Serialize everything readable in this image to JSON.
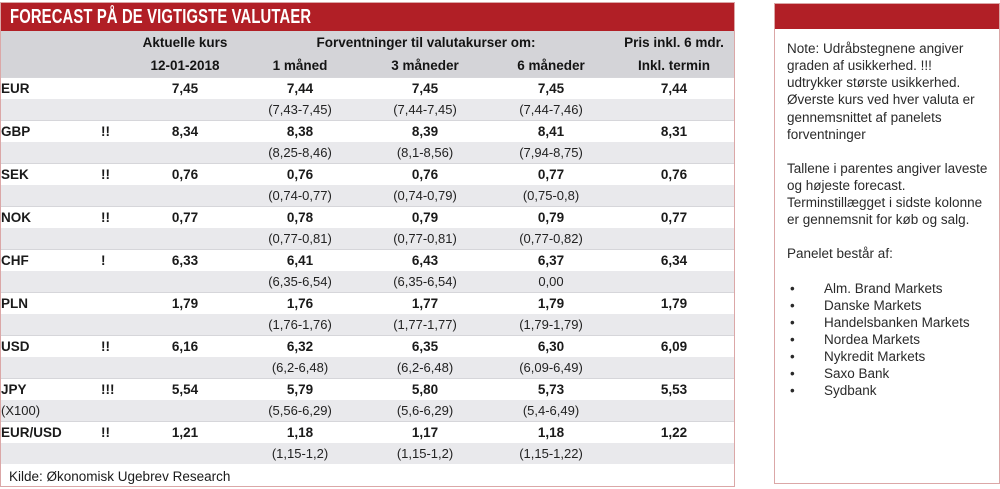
{
  "colors": {
    "accent_red": "#b11f26",
    "header_gray": "#d4d4d8",
    "stripe_gray": "#e9e9ec",
    "border_pink": "#dba7a7"
  },
  "left_panel": {
    "title": "FORECAST PÅ DE VIGTIGSTE VALUTAER",
    "source": "Kilde: Økonomisk Ugebrev Research"
  },
  "chart_data": {
    "type": "table",
    "title": "FORECAST PÅ DE VIGTIGSTE VALUTAER",
    "header": {
      "current_label": "Aktuelle kurs",
      "current_date": "12-01-2018",
      "forecast_label": "Forventninger til valutakurser om:",
      "col_1m": "1 måned",
      "col_3m": "3 måneder",
      "col_6m": "6 måneder",
      "termin_label_line1": "Pris inkl. 6 mdr.",
      "termin_label_line2": "Inkl. termin"
    },
    "rows": [
      {
        "code": "EUR",
        "sub": "",
        "marks": "",
        "current": "7,45",
        "m1": "7,44",
        "m1_range": "(7,43-7,45)",
        "m3": "7,45",
        "m3_range": "(7,44-7,45)",
        "m6": "7,45",
        "m6_range": "(7,44-7,46)",
        "termin": "7,44"
      },
      {
        "code": "GBP",
        "sub": "",
        "marks": "!!",
        "current": "8,34",
        "m1": "8,38",
        "m1_range": "(8,25-8,46)",
        "m3": "8,39",
        "m3_range": "(8,1-8,56)",
        "m6": "8,41",
        "m6_range": "(7,94-8,75)",
        "termin": "8,31"
      },
      {
        "code": "SEK",
        "sub": "",
        "marks": "!!",
        "current": "0,76",
        "m1": "0,76",
        "m1_range": "(0,74-0,77)",
        "m3": "0,76",
        "m3_range": "(0,74-0,79)",
        "m6": "0,77",
        "m6_range": "(0,75-0,8)",
        "termin": "0,76"
      },
      {
        "code": "NOK",
        "sub": "",
        "marks": "!!",
        "current": "0,77",
        "m1": "0,78",
        "m1_range": "(0,77-0,81)",
        "m3": "0,79",
        "m3_range": "(0,77-0,81)",
        "m6": "0,79",
        "m6_range": "(0,77-0,82)",
        "termin": "0,77"
      },
      {
        "code": "CHF",
        "sub": "",
        "marks": "!",
        "current": "6,33",
        "m1": "6,41",
        "m1_range": "(6,35-6,54)",
        "m3": "6,43",
        "m3_range": "(6,35-6,54)",
        "m6": "6,37",
        "m6_range": "0,00",
        "termin": "6,34"
      },
      {
        "code": "PLN",
        "sub": "",
        "marks": "",
        "current": "1,79",
        "m1": "1,76",
        "m1_range": "(1,76-1,76)",
        "m3": "1,77",
        "m3_range": "(1,77-1,77)",
        "m6": "1,79",
        "m6_range": "(1,79-1,79)",
        "termin": "1,79"
      },
      {
        "code": "USD",
        "sub": "",
        "marks": "!!",
        "current": "6,16",
        "m1": "6,32",
        "m1_range": "(6,2-6,48)",
        "m3": "6,35",
        "m3_range": "(6,2-6,48)",
        "m6": "6,30",
        "m6_range": "(6,09-6,49)",
        "termin": "6,09"
      },
      {
        "code": "JPY",
        "sub": "(X100)",
        "marks": "!!!",
        "current": "5,54",
        "m1": "5,79",
        "m1_range": "(5,56-6,29)",
        "m3": "5,80",
        "m3_range": "(5,6-6,29)",
        "m6": "5,73",
        "m6_range": "(5,4-6,49)",
        "termin": "5,53"
      },
      {
        "code": "EUR/USD",
        "sub": "",
        "marks": "!!",
        "current": "1,21",
        "m1": "1,18",
        "m1_range": "(1,15-1,2)",
        "m3": "1,17",
        "m3_range": "(1,15-1,2)",
        "m6": "1,18",
        "m6_range": "(1,15-1,22)",
        "termin": "1,22"
      }
    ],
    "source": "Kilde: Økonomisk Ugebrev Research"
  },
  "right_panel": {
    "note_paragraphs": [
      "Note: Udråbstegnene angiver graden af usikkerhed. !!! udtrykker største usikkerhed. Øverste kurs ved hver valuta er gennemsnittet af panelets forventninger",
      "Tallene i parentes angiver laveste og højeste forecast. Terminstillægget i sidste kolonne er gennemsnit for køb og salg."
    ],
    "panel_title": "Panelet består af:",
    "bullet_char": "•",
    "members": [
      "Alm. Brand Markets",
      "Danske Markets",
      "Handelsbanken Markets",
      "Nordea Markets",
      "Nykredit Markets",
      "Saxo Bank",
      "Sydbank"
    ]
  }
}
